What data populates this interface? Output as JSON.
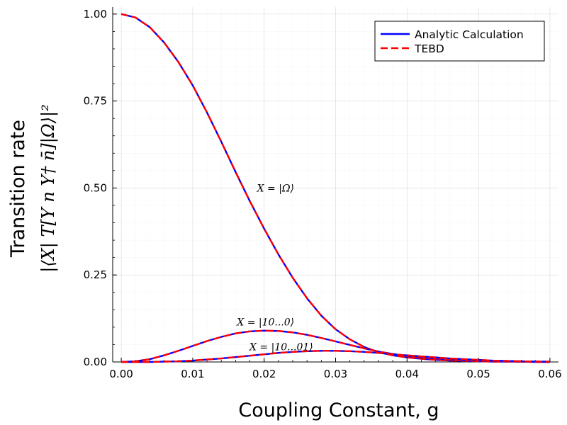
{
  "chart_data": {
    "type": "line",
    "title": "",
    "xlabel": "Coupling Constant, g",
    "ylabel_line1": "Transition rate",
    "ylabel_line2": "|⟨X| T[Y n Y† n̄]|Ω⟩|²",
    "xlim": [
      -0.0012,
      0.0612
    ],
    "ylim": [
      0,
      1.02
    ],
    "xticks": [
      0.0,
      0.01,
      0.02,
      0.03,
      0.04,
      0.05,
      0.06
    ],
    "xtick_labels": [
      "0.00",
      "0.01",
      "0.02",
      "0.03",
      "0.04",
      "0.05",
      "0.06"
    ],
    "yticks": [
      0.0,
      0.25,
      0.5,
      0.75,
      1.0
    ],
    "ytick_labels": [
      "0.00",
      "0.25",
      "0.50",
      "0.75",
      "1.00"
    ],
    "grid": true,
    "legend_position": "top-right",
    "legend": [
      {
        "label": "Analytic Calculation",
        "color": "#0000ff",
        "style": "solid"
      },
      {
        "label": "TEBD",
        "color": "#ff0000",
        "style": "dashed"
      }
    ],
    "series": [
      {
        "annotation": "X = |Ω⟩",
        "x": [
          0.0,
          0.002,
          0.004,
          0.006,
          0.008,
          0.01,
          0.012,
          0.014,
          0.016,
          0.018,
          0.02,
          0.022,
          0.024,
          0.026,
          0.028,
          0.03,
          0.032,
          0.034,
          0.036,
          0.038,
          0.04,
          0.042,
          0.044,
          0.046,
          0.048,
          0.05,
          0.052,
          0.054,
          0.056,
          0.058,
          0.06
        ],
        "y": [
          1.0,
          0.99,
          0.962,
          0.918,
          0.862,
          0.795,
          0.717,
          0.633,
          0.546,
          0.462,
          0.383,
          0.309,
          0.242,
          0.183,
          0.133,
          0.094,
          0.065,
          0.043,
          0.028,
          0.019,
          0.013,
          0.009,
          0.006,
          0.004,
          0.003,
          0.002,
          0.001,
          0.001,
          0.001,
          0.0,
          0.0
        ]
      },
      {
        "annotation": "X = |10...0⟩",
        "x": [
          0.0,
          0.002,
          0.004,
          0.006,
          0.008,
          0.01,
          0.012,
          0.014,
          0.016,
          0.018,
          0.02,
          0.022,
          0.024,
          0.026,
          0.028,
          0.03,
          0.032,
          0.034,
          0.036,
          0.038,
          0.04,
          0.042,
          0.044,
          0.046,
          0.048,
          0.05,
          0.052,
          0.054,
          0.056,
          0.058,
          0.06
        ],
        "y": [
          0.0,
          0.002,
          0.008,
          0.019,
          0.032,
          0.046,
          0.06,
          0.072,
          0.082,
          0.088,
          0.09,
          0.089,
          0.085,
          0.078,
          0.069,
          0.059,
          0.049,
          0.039,
          0.03,
          0.023,
          0.017,
          0.013,
          0.01,
          0.007,
          0.005,
          0.004,
          0.003,
          0.002,
          0.001,
          0.001,
          0.0
        ]
      },
      {
        "annotation": "X = |10...01⟩",
        "x": [
          0.0,
          0.002,
          0.004,
          0.006,
          0.008,
          0.01,
          0.012,
          0.014,
          0.016,
          0.018,
          0.02,
          0.022,
          0.024,
          0.026,
          0.028,
          0.03,
          0.032,
          0.034,
          0.036,
          0.038,
          0.04,
          0.042,
          0.044,
          0.046,
          0.048,
          0.05,
          0.052,
          0.054,
          0.056,
          0.058,
          0.06
        ],
        "y": [
          0.0,
          0.0,
          0.0,
          0.001,
          0.002,
          0.004,
          0.007,
          0.01,
          0.014,
          0.018,
          0.022,
          0.026,
          0.029,
          0.031,
          0.032,
          0.032,
          0.031,
          0.029,
          0.026,
          0.022,
          0.019,
          0.016,
          0.013,
          0.01,
          0.008,
          0.006,
          0.004,
          0.003,
          0.002,
          0.001,
          0.001
        ]
      }
    ],
    "annotations": [
      {
        "text": "X = |Ω⟩",
        "x": 0.0216,
        "y": 0.5
      },
      {
        "text": "X = |10...0⟩",
        "x": 0.0202,
        "y": 0.115
      },
      {
        "text": "X = |10...01⟩",
        "x": 0.0224,
        "y": 0.044
      }
    ]
  }
}
